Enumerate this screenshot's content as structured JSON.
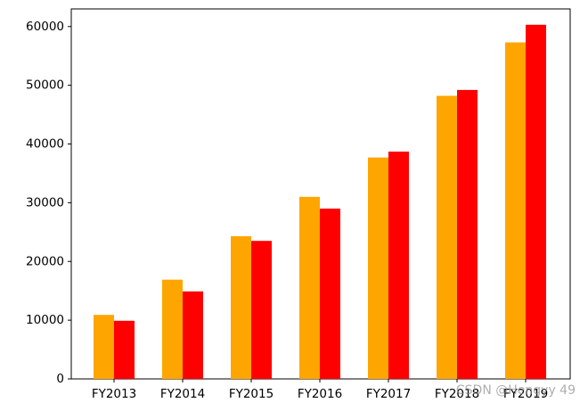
{
  "chart_data": {
    "type": "bar",
    "categories": [
      "FY2013",
      "FY2014",
      "FY2015",
      "FY2016",
      "FY2017",
      "FY2018",
      "FY2019"
    ],
    "series": [
      {
        "color": "#ffa500",
        "values": [
          10900,
          16900,
          24300,
          31000,
          37700,
          48200,
          57300
        ]
      },
      {
        "color": "#ff0000",
        "values": [
          9900,
          14900,
          23500,
          29000,
          38700,
          49200,
          60300
        ]
      }
    ],
    "ylim": [
      0,
      63000
    ],
    "yticks": [
      0,
      10000,
      20000,
      30000,
      40000,
      50000,
      60000
    ],
    "watermark": "CSDN @Hengyy 49"
  }
}
